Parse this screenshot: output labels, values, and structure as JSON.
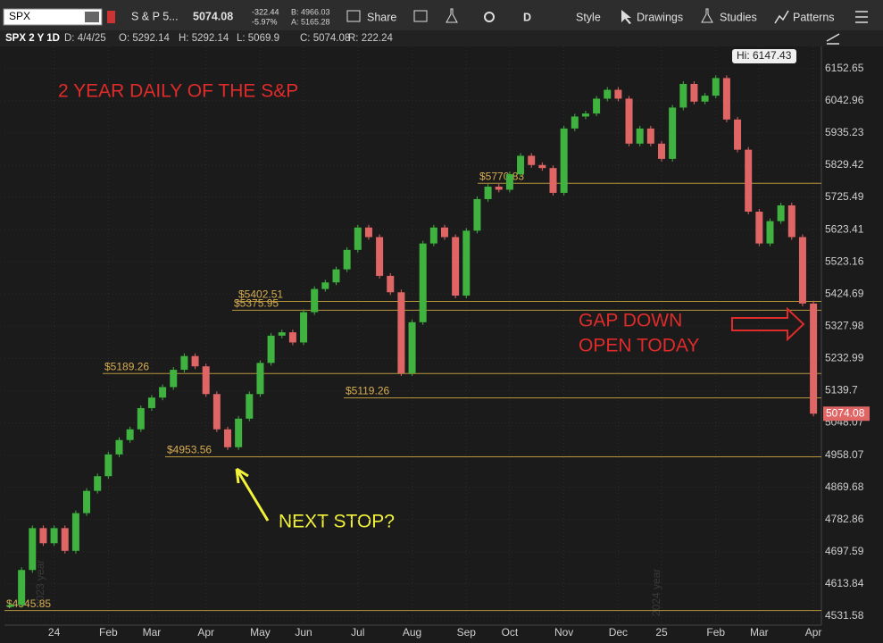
{
  "toolbar": {
    "symbol": "SPX",
    "description": "S & P 5...",
    "last": "5074.08",
    "change": "-322.44",
    "change_pct": "-5.97%",
    "bid": "B: 4966.03",
    "ask": "A: 5165.28",
    "share": "Share",
    "aggregation": "D",
    "style": "Style",
    "drawings": "Drawings",
    "studies": "Studies",
    "patterns": "Patterns"
  },
  "info_bar": [
    "SPX 2 Y 1D",
    "D: 4/4/25",
    "O: 5292.14",
    "H: 5292.14",
    "L: 5069.9",
    "C: 5074.08",
    "R: 222.24"
  ],
  "chart_data": {
    "type": "candlestick",
    "log_scale": true,
    "grid": true,
    "title": "2 YEAR DAILY OF THE S&P",
    "annotations": [
      "GAP DOWN",
      "OPEN TODAY",
      "NEXT STOP?"
    ],
    "watermarks": [
      "2023 year",
      "2024 year"
    ],
    "high_label": "Hi: 6147.43",
    "last_value": 5074.08,
    "up_color": "#3fb23f",
    "down_color": "#e06666",
    "level_color": "#b8963c",
    "categories": [
      null,
      null,
      null,
      null,
      "24",
      null,
      null,
      null,
      null,
      "Feb",
      null,
      null,
      null,
      "Mar",
      null,
      null,
      null,
      null,
      "Apr",
      null,
      null,
      null,
      null,
      "May",
      null,
      null,
      null,
      "Jun",
      null,
      null,
      null,
      null,
      "Jul",
      null,
      null,
      null,
      null,
      "Aug",
      null,
      null,
      null,
      null,
      "Sep",
      null,
      null,
      null,
      "Oct",
      null,
      null,
      null,
      null,
      "Nov",
      null,
      null,
      null,
      null,
      "Dec",
      null,
      null,
      null,
      "25",
      null,
      null,
      null,
      null,
      "Feb",
      null,
      null,
      null,
      "Mar",
      null,
      null,
      null,
      null,
      "Apr"
    ],
    "values": [
      4560,
      4650,
      4760,
      4720,
      4760,
      4700,
      4800,
      4860,
      4900,
      4960,
      5000,
      5030,
      5090,
      5120,
      5150,
      5200,
      5240,
      5210,
      5130,
      5030,
      4980,
      5060,
      5130,
      5220,
      5300,
      5310,
      5280,
      5370,
      5440,
      5460,
      5500,
      5560,
      5630,
      5600,
      5480,
      5430,
      5190,
      5340,
      5580,
      5630,
      5600,
      5420,
      5620,
      5720,
      5760,
      5750,
      5800,
      5860,
      5830,
      5820,
      5740,
      5950,
      5990,
      6000,
      6050,
      6080,
      6050,
      5900,
      5950,
      5900,
      5850,
      6020,
      6100,
      6040,
      6060,
      6120,
      5980,
      5880,
      5680,
      5580,
      5650,
      5700,
      5600,
      5396,
      5074.08
    ],
    "levels": [
      {
        "value": 5770.83,
        "label": "$5770.83"
      },
      {
        "value": 5402.51,
        "label": "$5402.51"
      },
      {
        "value": 5375.95,
        "label": "$5375.95"
      },
      {
        "value": 5189.26,
        "label": "$5189.26"
      },
      {
        "value": 5119.26,
        "label": "$5119.26"
      },
      {
        "value": 4953.56,
        "label": "$4953.56"
      },
      {
        "value": 4545.85,
        "label": "$4545.85"
      }
    ],
    "ylim": [
      4509,
      6229
    ],
    "yticks": [
      6152.65,
      6042.96,
      5935.23,
      5829.42,
      5725.49,
      5623.41,
      5523.16,
      5424.69,
      5327.98,
      5232.99,
      5139.7,
      5048.07,
      4958.07,
      4869.68,
      4782.86,
      4697.59,
      4613.84,
      4531.58
    ]
  }
}
